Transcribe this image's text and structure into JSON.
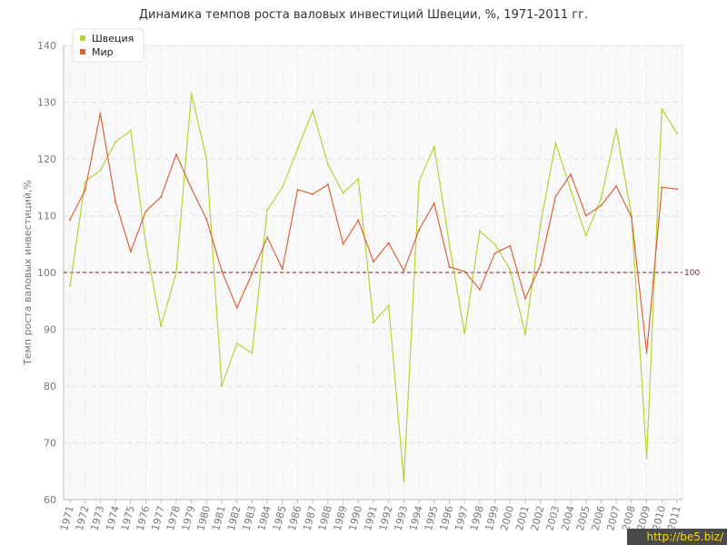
{
  "chart_data": {
    "type": "line",
    "title": "Динамика темпов роста валовых инвестиций Швеции, %, 1971-2011 гг.",
    "ylabel": "Темп роста валовых инвестиций,%",
    "ylim": [
      60,
      140
    ],
    "yticks": [
      60,
      70,
      80,
      90,
      100,
      110,
      120,
      130,
      140
    ],
    "grid": true,
    "legend": "top-left",
    "x": [
      "1971",
      "1972",
      "1973",
      "1974",
      "1975",
      "1976",
      "1977",
      "1978",
      "1979",
      "1980",
      "1981",
      "1982",
      "1983",
      "1984",
      "1985",
      "1986",
      "1987",
      "1988",
      "1989",
      "1990",
      "1991",
      "1992",
      "1993",
      "1994",
      "1995",
      "1996",
      "1997",
      "1998",
      "1999",
      "2000",
      "2001",
      "2002",
      "2003",
      "2004",
      "2005",
      "2006",
      "2007",
      "2008",
      "2009",
      "2010",
      "2011"
    ],
    "series": [
      {
        "name": "Швеция",
        "color": "#b5d335",
        "values": [
          97.6,
          116,
          118,
          123,
          125,
          105,
          90.5,
          100,
          131.5,
          120,
          80,
          87.5,
          85.8,
          111,
          115,
          121.8,
          128.5,
          119,
          114,
          116.5,
          91.2,
          94.2,
          63.2,
          116,
          122.2,
          105,
          89.2,
          107.3,
          105,
          100.5,
          89.1,
          108.5,
          122.8,
          114.5,
          106.5,
          113,
          125.3,
          110,
          67.3,
          128.8,
          124.5
        ]
      },
      {
        "name": "Мир",
        "color": "#d9643a",
        "values": [
          109.3,
          114.5,
          128,
          112.5,
          103.7,
          110.8,
          113.3,
          120.8,
          114.8,
          109.4,
          100.3,
          93.8,
          99.8,
          106.2,
          100.6,
          114.6,
          113.8,
          115.5,
          105,
          109.2,
          101.9,
          105.2,
          100.3,
          107.5,
          112.2,
          101,
          100.2,
          97,
          103.4,
          104.7,
          95.4,
          101.3,
          113.4,
          117.3,
          110,
          111.8,
          115.2,
          109.8,
          85.9,
          115,
          114.7
        ]
      }
    ],
    "reference_line": {
      "value": 100,
      "label": "100",
      "color": "#7a1f2b"
    }
  },
  "watermark": "http://be5.biz/"
}
